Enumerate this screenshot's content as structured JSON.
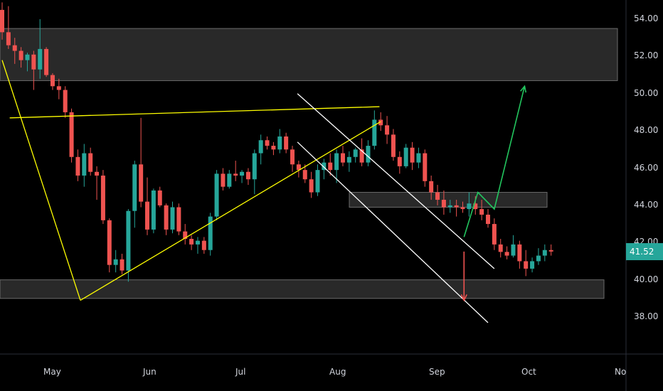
{
  "colors": {
    "background": "#000000",
    "up": "#26a69a",
    "down": "#ef5350",
    "zone": "#4a4a4a",
    "trendline": "#ffff00",
    "channel": "#ffffff",
    "projection_up": "#22c55e",
    "projection_down": "#ef5350",
    "axis_text": "#d1d4dc",
    "last_price_bg": "#26a69a"
  },
  "last_price": "41.52",
  "chart_data": {
    "type": "candlestick",
    "title": "",
    "y_axis": {
      "ticks": [
        "54.00",
        "52.00",
        "50.00",
        "48.00",
        "46.00",
        "44.00",
        "42.00",
        "40.00",
        "38.00"
      ],
      "range": [
        36.0,
        55.0
      ]
    },
    "x_axis": {
      "ticks": [
        "May",
        "Jun",
        "Jul",
        "Aug",
        "Sep",
        "Oct",
        "No"
      ]
    },
    "zones": [
      {
        "name": "resistance-zone",
        "low": 50.7,
        "high": 53.5
      },
      {
        "name": "mid-zone",
        "low": 43.9,
        "high": 44.7
      },
      {
        "name": "support-zone",
        "low": 39.0,
        "high": 40.0
      }
    ],
    "candles": [
      [
        54.5,
        54.9,
        52.9,
        53.3
      ],
      [
        53.3,
        54.7,
        52.4,
        52.6
      ],
      [
        52.6,
        53.0,
        51.6,
        52.3
      ],
      [
        52.3,
        52.5,
        51.4,
        51.8
      ],
      [
        51.8,
        52.2,
        51.2,
        52.1
      ],
      [
        52.1,
        52.3,
        50.2,
        51.3
      ],
      [
        51.3,
        54.0,
        50.8,
        52.4
      ],
      [
        52.4,
        52.5,
        50.9,
        51.0
      ],
      [
        51.0,
        51.1,
        50.2,
        50.4
      ],
      [
        50.4,
        50.8,
        49.7,
        50.2
      ],
      [
        50.2,
        50.4,
        48.7,
        49.0
      ],
      [
        49.0,
        49.2,
        46.3,
        46.6
      ],
      [
        46.6,
        47.0,
        45.3,
        45.6
      ],
      [
        45.6,
        47.3,
        45.0,
        46.8
      ],
      [
        46.8,
        47.1,
        45.6,
        45.8
      ],
      [
        45.8,
        46.1,
        44.3,
        45.6
      ],
      [
        45.6,
        45.9,
        43.0,
        43.2
      ],
      [
        43.2,
        43.3,
        40.4,
        40.8
      ],
      [
        40.8,
        41.6,
        40.4,
        41.1
      ],
      [
        41.1,
        41.4,
        40.3,
        40.5
      ],
      [
        40.5,
        43.8,
        39.9,
        43.7
      ],
      [
        43.7,
        46.4,
        42.8,
        46.2
      ],
      [
        46.2,
        48.7,
        43.9,
        44.2
      ],
      [
        44.2,
        45.5,
        42.4,
        42.7
      ],
      [
        42.7,
        44.9,
        42.5,
        44.8
      ],
      [
        44.8,
        45.0,
        43.9,
        44.0
      ],
      [
        44.0,
        44.1,
        42.4,
        42.7
      ],
      [
        42.7,
        44.2,
        42.5,
        43.9
      ],
      [
        43.9,
        44.1,
        42.4,
        42.6
      ],
      [
        42.6,
        43.0,
        41.9,
        42.2
      ],
      [
        42.2,
        42.4,
        41.6,
        41.9
      ],
      [
        41.9,
        42.3,
        41.4,
        42.1
      ],
      [
        42.1,
        42.3,
        41.4,
        41.6
      ],
      [
        41.6,
        43.6,
        41.3,
        43.4
      ],
      [
        43.4,
        45.9,
        43.2,
        45.7
      ],
      [
        45.7,
        46.0,
        44.8,
        45.0
      ],
      [
        45.0,
        45.9,
        44.9,
        45.7
      ],
      [
        45.7,
        46.4,
        45.3,
        45.6
      ],
      [
        45.6,
        45.9,
        45.2,
        45.8
      ],
      [
        45.8,
        46.0,
        45.1,
        45.4
      ],
      [
        45.4,
        47.0,
        44.6,
        46.8
      ],
      [
        46.8,
        47.8,
        46.2,
        47.5
      ],
      [
        47.5,
        47.7,
        47.0,
        47.2
      ],
      [
        47.2,
        47.4,
        46.7,
        47.0
      ],
      [
        47.0,
        48.1,
        46.8,
        47.7
      ],
      [
        47.7,
        47.9,
        46.8,
        47.0
      ],
      [
        47.0,
        47.2,
        45.8,
        46.2
      ],
      [
        46.2,
        46.4,
        45.5,
        45.9
      ],
      [
        45.9,
        46.2,
        45.2,
        45.4
      ],
      [
        45.4,
        45.8,
        44.4,
        44.7
      ],
      [
        44.7,
        46.2,
        44.5,
        45.9
      ],
      [
        45.9,
        46.5,
        45.4,
        46.3
      ],
      [
        46.3,
        46.8,
        45.6,
        45.9
      ],
      [
        45.9,
        47.0,
        45.2,
        46.8
      ],
      [
        46.8,
        47.2,
        46.1,
        46.3
      ],
      [
        46.3,
        46.9,
        45.8,
        46.6
      ],
      [
        46.6,
        47.1,
        46.3,
        47.0
      ],
      [
        47.0,
        47.6,
        46.1,
        46.3
      ],
      [
        46.3,
        47.5,
        46.1,
        47.2
      ],
      [
        47.2,
        49.1,
        47.0,
        48.6
      ],
      [
        48.6,
        49.0,
        48.0,
        48.3
      ],
      [
        48.3,
        48.8,
        47.3,
        47.8
      ],
      [
        47.8,
        48.1,
        46.4,
        46.6
      ],
      [
        46.6,
        46.9,
        45.7,
        46.1
      ],
      [
        46.1,
        47.3,
        46.0,
        47.1
      ],
      [
        47.1,
        47.4,
        45.9,
        46.3
      ],
      [
        46.3,
        47.1,
        46.0,
        46.8
      ],
      [
        46.8,
        47.0,
        45.0,
        45.3
      ],
      [
        45.3,
        45.6,
        44.3,
        44.7
      ],
      [
        44.7,
        45.1,
        44.0,
        44.3
      ],
      [
        44.3,
        44.8,
        43.5,
        43.9
      ],
      [
        43.9,
        44.3,
        43.6,
        44.0
      ],
      [
        44.0,
        44.3,
        43.4,
        43.9
      ],
      [
        43.9,
        44.2,
        43.6,
        43.8
      ],
      [
        43.8,
        44.7,
        43.4,
        44.1
      ],
      [
        44.1,
        44.5,
        43.5,
        43.8
      ],
      [
        43.8,
        44.3,
        43.2,
        43.5
      ],
      [
        43.5,
        43.8,
        42.8,
        43.0
      ],
      [
        43.0,
        43.3,
        41.6,
        41.9
      ],
      [
        41.9,
        42.2,
        41.2,
        41.5
      ],
      [
        41.5,
        41.8,
        41.1,
        41.3
      ],
      [
        41.3,
        42.4,
        41.2,
        41.9
      ],
      [
        41.9,
        42.1,
        40.6,
        41.0
      ],
      [
        41.0,
        41.6,
        40.2,
        40.6
      ],
      [
        40.6,
        41.2,
        40.4,
        41.0
      ],
      [
        41.0,
        41.7,
        40.8,
        41.3
      ],
      [
        41.3,
        41.9,
        41.0,
        41.6
      ],
      [
        41.6,
        41.9,
        41.3,
        41.52
      ]
    ],
    "lines": [
      {
        "name": "descending-support-line",
        "color": "trendline",
        "points": [
          [
            0,
            51.8
          ],
          [
            12.4,
            38.9
          ]
        ]
      },
      {
        "name": "horizontal-resistance-line",
        "color": "trendline",
        "points": [
          [
            1.2,
            48.7
          ],
          [
            59.8,
            49.3
          ]
        ]
      },
      {
        "name": "rising-trendline",
        "color": "trendline",
        "points": [
          [
            12.4,
            38.9
          ],
          [
            60.0,
            48.5
          ]
        ]
      },
      {
        "name": "channel-upper-line",
        "color": "channel",
        "points": [
          [
            46.8,
            50.0
          ],
          [
            78.0,
            40.6
          ]
        ]
      },
      {
        "name": "channel-lower-line",
        "color": "channel",
        "points": [
          [
            46.8,
            47.4
          ],
          [
            77.0,
            37.7
          ]
        ]
      }
    ],
    "projections": [
      {
        "name": "bullish-projection",
        "color": "projection_up",
        "points": [
          [
            73.2,
            42.3
          ],
          [
            75.4,
            44.7
          ],
          [
            78.0,
            43.8
          ],
          [
            82.8,
            50.4
          ]
        ]
      },
      {
        "name": "bearish-projection",
        "color": "projection_down",
        "points": [
          [
            73.2,
            41.52
          ],
          [
            73.2,
            38.9
          ]
        ]
      }
    ]
  }
}
